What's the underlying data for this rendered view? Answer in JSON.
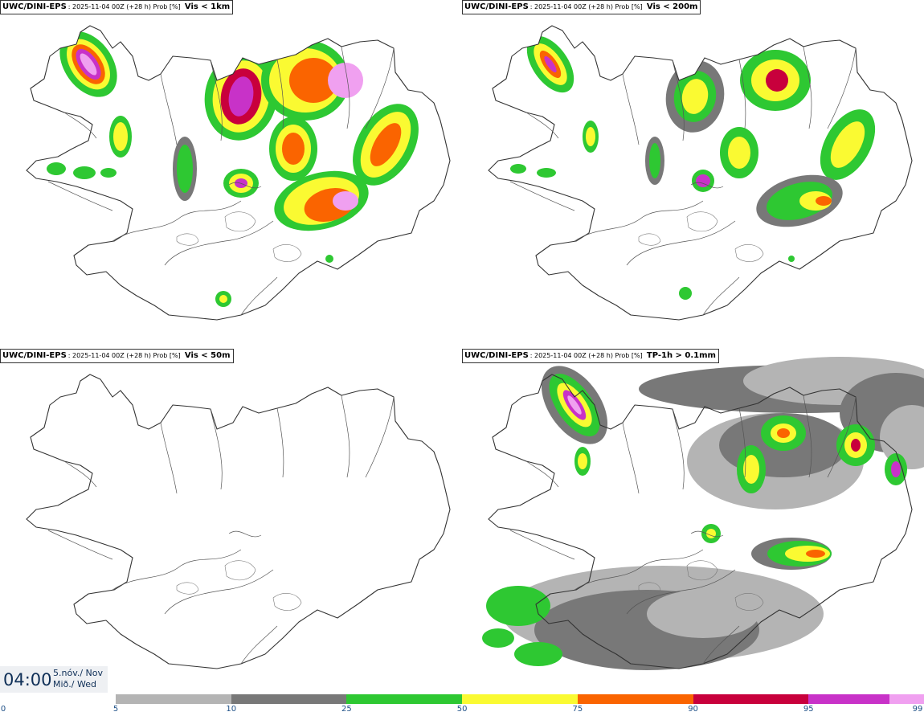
{
  "panels": [
    {
      "source": "UWC/DINI-EPS",
      "meta": ": 2025-11-04 00Z (+28 h) Prob [%]",
      "variable": "Vis < 1km",
      "intensity": "high"
    },
    {
      "source": "UWC/DINI-EPS",
      "meta": ": 2025-11-04 00Z (+28 h) Prob [%]",
      "variable": "Vis < 200m",
      "intensity": "medium"
    },
    {
      "source": "UWC/DINI-EPS",
      "meta": ": 2025-11-04 00Z (+28 h) Prob [%]",
      "variable": "Vis < 50m",
      "intensity": "none"
    },
    {
      "source": "UWC/DINI-EPS",
      "meta": ": 2025-11-04 00Z (+28 h) Prob [%]",
      "variable": "TP-1h > 0.1mm",
      "intensity": "precip"
    }
  ],
  "time_box": {
    "time": "04:00",
    "date_line1": "5.nóv./ Nov",
    "date_line2": "Mið./ Wed"
  },
  "colorbar": {
    "ticks": [
      "0",
      "5",
      "10",
      "25",
      "50",
      "75",
      "90",
      "95",
      "99"
    ],
    "bins": [
      {
        "from": 5,
        "to": 10,
        "color": "#b4b4b4"
      },
      {
        "from": 10,
        "to": 25,
        "color": "#787878"
      },
      {
        "from": 25,
        "to": 50,
        "color": "#2ec832"
      },
      {
        "from": 50,
        "to": 75,
        "color": "#fafa32"
      },
      {
        "from": 75,
        "to": 90,
        "color": "#fa6400"
      },
      {
        "from": 90,
        "to": 95,
        "color": "#c8003c"
      },
      {
        "from": 95,
        "to": 99,
        "color": "#c832c8"
      },
      {
        "from": 99,
        "to": 100,
        "color": "#f0a0f0"
      }
    ]
  }
}
